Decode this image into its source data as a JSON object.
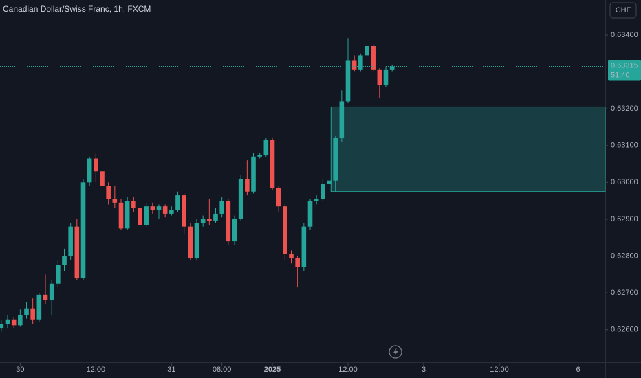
{
  "chart_data": {
    "type": "candlestick",
    "title": "Canadian Dollar/Swiss Franc, 1h, FXCM",
    "currency": "CHF",
    "up_color": "#26a69a",
    "down_color": "#ef5350",
    "opens": [
      0.62605,
      0.62615,
      0.62628,
      0.62612,
      0.6264,
      0.62658,
      0.62628,
      0.62695,
      0.6268,
      0.62725,
      0.62775,
      0.628,
      0.6288,
      0.6274,
      0.63,
      0.63065,
      0.6303,
      0.6299,
      0.62955,
      0.62945,
      0.62875,
      0.6295,
      0.6293,
      0.62885,
      0.62935,
      0.62925,
      0.62935,
      0.62915,
      0.62925,
      0.62965,
      0.6288,
      0.62795,
      0.6289,
      0.629,
      0.62895,
      0.62915,
      0.6295,
      0.6284,
      0.629,
      0.6301,
      0.62975,
      0.6307,
      0.63075,
      0.63115,
      0.62985,
      0.62935,
      0.62805,
      0.62795,
      0.6277,
      0.6288,
      0.6295,
      0.62955,
      0.62995,
      0.63005,
      0.6312,
      0.6322,
      0.6333,
      0.63305,
      0.63345,
      0.6337,
      0.63305,
      0.63265,
      0.63305
    ],
    "highs": [
      0.62625,
      0.6264,
      0.62635,
      0.62655,
      0.62675,
      0.62685,
      0.627,
      0.6275,
      0.62735,
      0.6279,
      0.6282,
      0.6289,
      0.629,
      0.6301,
      0.6307,
      0.6308,
      0.6304,
      0.63,
      0.6299,
      0.62955,
      0.6296,
      0.6296,
      0.6295,
      0.62945,
      0.62945,
      0.6294,
      0.6294,
      0.62935,
      0.62975,
      0.6297,
      0.6289,
      0.629,
      0.6291,
      0.62955,
      0.6293,
      0.6296,
      0.62955,
      0.6291,
      0.6302,
      0.6306,
      0.6308,
      0.6308,
      0.6312,
      0.6312,
      0.6299,
      0.6294,
      0.62815,
      0.628,
      0.6289,
      0.62955,
      0.62965,
      0.6301,
      0.6301,
      0.63125,
      0.6325,
      0.6339,
      0.63345,
      0.6335,
      0.63395,
      0.63375,
      0.6331,
      0.63315,
      0.6332
    ],
    "lows": [
      0.62595,
      0.62605,
      0.62605,
      0.62608,
      0.6263,
      0.62615,
      0.6262,
      0.6267,
      0.6264,
      0.62715,
      0.6276,
      0.6279,
      0.62735,
      0.62735,
      0.6299,
      0.63,
      0.6298,
      0.6294,
      0.6293,
      0.6287,
      0.6287,
      0.6292,
      0.6288,
      0.6288,
      0.62915,
      0.629,
      0.62905,
      0.6291,
      0.6292,
      0.6286,
      0.6279,
      0.6279,
      0.6288,
      0.62885,
      0.6289,
      0.62905,
      0.6283,
      0.6283,
      0.62895,
      0.62965,
      0.6297,
      0.63065,
      0.6307,
      0.6298,
      0.6292,
      0.6279,
      0.6278,
      0.62715,
      0.6276,
      0.6287,
      0.6294,
      0.6295,
      0.62945,
      0.62975,
      0.6311,
      0.63215,
      0.633,
      0.633,
      0.6333,
      0.633,
      0.6323,
      0.6326,
      0.633
    ],
    "closes": [
      0.62615,
      0.62628,
      0.62612,
      0.6264,
      0.62658,
      0.62628,
      0.62695,
      0.6268,
      0.62725,
      0.62775,
      0.628,
      0.6288,
      0.6274,
      0.63,
      0.63065,
      0.6303,
      0.6299,
      0.62955,
      0.62945,
      0.62875,
      0.6295,
      0.6293,
      0.62885,
      0.62935,
      0.62925,
      0.62935,
      0.62915,
      0.62925,
      0.62965,
      0.6288,
      0.62795,
      0.6289,
      0.629,
      0.62895,
      0.62915,
      0.6295,
      0.6284,
      0.629,
      0.6301,
      0.62975,
      0.6307,
      0.63075,
      0.63115,
      0.62985,
      0.62935,
      0.62805,
      0.62795,
      0.6277,
      0.6288,
      0.6295,
      0.62955,
      0.62995,
      0.63005,
      0.6312,
      0.6322,
      0.6333,
      0.63305,
      0.63345,
      0.6337,
      0.63305,
      0.63265,
      0.63305,
      0.63315
    ],
    "xlim": [
      -0.2,
      95.8
    ],
    "xticks": [
      {
        "value": 3,
        "label": "30"
      },
      {
        "value": 15,
        "label": "12:00"
      },
      {
        "value": 27,
        "label": "31"
      },
      {
        "value": 35,
        "label": "08:00"
      },
      {
        "value": 43,
        "label": "2025"
      },
      {
        "value": 55,
        "label": "12:00"
      },
      {
        "value": 67,
        "label": "3"
      },
      {
        "value": 79,
        "label": "12:00"
      },
      {
        "value": 91.5,
        "label": "6"
      }
    ],
    "ylim": [
      0.6251,
      0.63495
    ],
    "yticks": [
      {
        "value": 0.634,
        "label": "0.63400"
      },
      {
        "value": 0.632,
        "label": "0.63200"
      },
      {
        "value": 0.631,
        "label": "0.63100"
      },
      {
        "value": 0.63,
        "label": "0.63000"
      },
      {
        "value": 0.629,
        "label": "0.62900"
      },
      {
        "value": 0.628,
        "label": "0.62800"
      },
      {
        "value": 0.627,
        "label": "0.62700"
      },
      {
        "value": 0.626,
        "label": "0.62600"
      }
    ],
    "last_price": {
      "value": 0.63315,
      "label": "0.63315"
    },
    "countdown": "51:40",
    "zone": {
      "x_start": 52.3,
      "top": 0.63205,
      "bottom": 0.62975,
      "color": "#26a69a"
    }
  }
}
